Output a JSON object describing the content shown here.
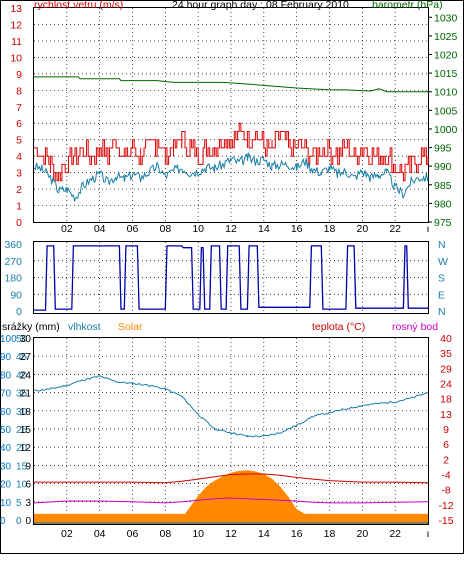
{
  "page": {
    "title": "24 hour graph day : 08 February 2010"
  },
  "colors": {
    "wind_gust": "#dd0000",
    "wind_avg": "#1a7fa8",
    "barometer": "#006600",
    "direction": "#0000aa",
    "humidity": "#1a7fa8",
    "solar": "#ff8800",
    "temperature": "#cc0000",
    "dewpoint": "#cc00cc",
    "rain": "#0077cc"
  },
  "chart_data": [
    {
      "type": "line",
      "id": "wind-pressure",
      "title": "24 hour graph day : 08 February 2010",
      "left_axis_label": "rychlost vetru (m/s)",
      "right_axis_label": "barometr (hPa)",
      "x_ticks": [
        "02",
        "04",
        "06",
        "08",
        "10",
        "12",
        "14",
        "16",
        "18",
        "20",
        "22"
      ],
      "x_range_hours": [
        0,
        24
      ],
      "left_ticks": [
        0,
        1,
        2,
        3,
        4,
        5,
        6,
        7,
        8,
        9,
        10,
        11,
        12,
        13
      ],
      "left_range": [
        0,
        13
      ],
      "right_ticks": [
        975,
        980,
        985,
        990,
        995,
        1000,
        1005,
        1010,
        1015,
        1020,
        1025,
        1030
      ],
      "right_range": [
        975,
        1032.5
      ],
      "grid": true,
      "series": [
        {
          "name": "rychlost vetru gust",
          "axis": "left",
          "color": "#dd0000",
          "style": "bars",
          "x": [
            0,
            0.5,
            1,
            1.5,
            2,
            2.5,
            3,
            3.5,
            4,
            4.5,
            5,
            5.5,
            6,
            6.5,
            7,
            7.5,
            8,
            8.5,
            9,
            9.5,
            10,
            10.5,
            11,
            11.5,
            12,
            12.5,
            13,
            13.5,
            14,
            14.5,
            15,
            15.5,
            16,
            16.5,
            17,
            17.5,
            18,
            18.5,
            19,
            19.5,
            20,
            20.5,
            21,
            21.5,
            22,
            22.5,
            23,
            23.5
          ],
          "values": [
            4.5,
            4.0,
            3.5,
            3.0,
            3.5,
            4.0,
            4.5,
            4.0,
            4.5,
            4.0,
            5.0,
            4.0,
            4.5,
            4.0,
            4.5,
            5.0,
            4.0,
            4.5,
            5.0,
            4.5,
            4.0,
            4.5,
            4.5,
            5.0,
            5.0,
            5.5,
            5.0,
            5.5,
            4.5,
            4.5,
            5.0,
            4.5,
            4.5,
            4.5,
            4.0,
            4.5,
            4.5,
            4.0,
            4.5,
            4.0,
            4.5,
            4.0,
            4.0,
            4.0,
            3.5,
            3.0,
            3.5,
            4.0
          ]
        },
        {
          "name": "rychlost vetru avg",
          "axis": "left",
          "color": "#1a7fa8",
          "x": [
            0,
            0.5,
            1,
            1.5,
            2,
            2.5,
            3,
            3.5,
            4,
            4.5,
            5,
            5.5,
            6,
            6.5,
            7,
            7.5,
            8,
            8.5,
            9,
            9.5,
            10,
            10.5,
            11,
            11.5,
            12,
            12.5,
            13,
            13.5,
            14,
            14.5,
            15,
            15.5,
            16,
            16.5,
            17,
            17.5,
            18,
            18.5,
            19,
            19.5,
            20,
            20.5,
            21,
            21.5,
            22,
            22.5,
            23,
            23.5
          ],
          "values": [
            3.4,
            3.2,
            2.7,
            1.9,
            2.0,
            1.5,
            2.2,
            2.6,
            2.9,
            2.4,
            2.8,
            2.6,
            2.9,
            2.7,
            3.0,
            3.4,
            2.8,
            3.1,
            3.3,
            3.0,
            3.1,
            3.3,
            3.3,
            3.5,
            3.8,
            3.6,
            3.9,
            3.7,
            3.8,
            3.4,
            3.5,
            3.5,
            3.3,
            3.7,
            3.2,
            3.0,
            3.3,
            2.9,
            3.1,
            2.7,
            3.1,
            2.7,
            2.9,
            3.0,
            2.1,
            1.7,
            2.5,
            2.7
          ]
        },
        {
          "name": "barometr",
          "axis": "right",
          "color": "#006600",
          "x": [
            0,
            2.7,
            2.8,
            5.2,
            5.3,
            7.5,
            8.5,
            11.5,
            13.2,
            16.0,
            18.0,
            19.0,
            20.5,
            21.0,
            21.5,
            24.0
          ],
          "values": [
            1014,
            1014,
            1013.5,
            1013.5,
            1013,
            1013,
            1012.5,
            1012.5,
            1012,
            1011,
            1010.5,
            1010.5,
            1010.2,
            1010.8,
            1010,
            1010
          ]
        }
      ]
    },
    {
      "type": "line",
      "id": "wind-direction",
      "y_ticks": [
        "0",
        "90",
        "180",
        "270",
        "360"
      ],
      "right_labels": [
        "N",
        "W",
        "S",
        "E",
        "N"
      ],
      "y_range": [
        0,
        360
      ],
      "x_range_hours": [
        0,
        24
      ],
      "series": [
        {
          "name": "smer vetru",
          "color": "#0000aa",
          "x": [
            0,
            0.7,
            0.8,
            1.2,
            1.3,
            2.3,
            2.4,
            3.3,
            3.4,
            4.3,
            4.4,
            5.2,
            5.3,
            5.5,
            5.6,
            6.3,
            6.4,
            8.0,
            8.1,
            8.5,
            8.6,
            9.0,
            9.1,
            9.6,
            9.7,
            10.1,
            10.2,
            10.3,
            10.4,
            10.7,
            10.8,
            11.3,
            11.4,
            11.7,
            11.8,
            12.5,
            12.6,
            13.0,
            13.1,
            13.6,
            13.7,
            16.8,
            16.9,
            17.5,
            17.6,
            19.0,
            19.1,
            19.5,
            19.6,
            22.5,
            22.6,
            22.7,
            22.8,
            24.0
          ],
          "values": [
            5,
            5,
            350,
            350,
            10,
            10,
            350,
            350,
            350,
            350,
            350,
            350,
            10,
            10,
            350,
            350,
            10,
            10,
            350,
            350,
            350,
            350,
            340,
            340,
            10,
            10,
            340,
            340,
            10,
            10,
            350,
            350,
            10,
            10,
            350,
            350,
            10,
            10,
            350,
            350,
            20,
            20,
            350,
            350,
            10,
            10,
            350,
            350,
            15,
            15,
            350,
            350,
            15,
            15
          ]
        }
      ]
    },
    {
      "type": "area",
      "id": "humidity-temperature",
      "x_ticks": [
        "02",
        "04",
        "06",
        "08",
        "10",
        "12",
        "14",
        "16",
        "18",
        "20",
        "22"
      ],
      "x_range_hours": [
        0,
        24
      ],
      "left_axis_labels": [
        "srážky (mm)",
        "vlhkost",
        "Solar"
      ],
      "right_axis_labels": [
        "teplota (°C)",
        "rosný bod"
      ],
      "rain_ticks": [
        "0",
        "10",
        "20",
        "30",
        "40",
        "50",
        "60",
        "70",
        "80",
        "90",
        "100"
      ],
      "humidity_ticks": [
        "0",
        "5",
        "10",
        "15",
        "20",
        "25",
        "30",
        "35",
        "40",
        "45",
        "50"
      ],
      "solar_ticks": [
        "0",
        "3",
        "6",
        "9",
        "12",
        "15",
        "18",
        "21",
        "24",
        "27",
        "30"
      ],
      "temp_ticks": [
        "-15",
        "-12",
        "-8",
        "-4",
        "2",
        "6",
        "9",
        "13",
        "18",
        "24",
        "29",
        "35",
        "40"
      ],
      "temp_range": [
        -15,
        40
      ],
      "humidity_range": [
        0,
        50
      ],
      "solar_range": [
        0,
        30
      ],
      "series": [
        {
          "name": "vlhkost",
          "axis": "humidity",
          "color": "#1a7fa8",
          "x": [
            0,
            1,
            2,
            3,
            4,
            5,
            6,
            7,
            8,
            9,
            10,
            11,
            12,
            13,
            14,
            15,
            16,
            17,
            18,
            19,
            20,
            21,
            22,
            23,
            24
          ],
          "values": [
            35.5,
            36,
            37,
            38.5,
            39.5,
            38,
            37.5,
            37,
            36,
            34,
            29,
            25,
            24,
            23,
            23,
            24,
            26,
            28.5,
            29.5,
            30.5,
            31.5,
            32,
            32.5,
            33.5,
            35
          ]
        },
        {
          "name": "Solar",
          "axis": "solar",
          "color": "#ff8800",
          "x": [
            0,
            9.2,
            9.6,
            10,
            10.5,
            11,
            11.5,
            12,
            12.5,
            13,
            13.5,
            14,
            14.5,
            15,
            15.5,
            16,
            16.5,
            24
          ],
          "values": [
            1,
            1,
            2.5,
            4,
            5.5,
            6.5,
            7.2,
            7.8,
            8.1,
            8.2,
            8.0,
            7.6,
            6.8,
            5.5,
            3.8,
            1.8,
            1,
            1
          ]
        },
        {
          "name": "teplota",
          "axis": "temp",
          "color": "#cc0000",
          "x": [
            0,
            2,
            4,
            6,
            8,
            9,
            10,
            11,
            12,
            13,
            14,
            15,
            16,
            17,
            18,
            20,
            22,
            24
          ],
          "values": [
            -6,
            -6,
            -6,
            -6,
            -6.2,
            -5.8,
            -5.2,
            -4.6,
            -4.0,
            -3.8,
            -3.8,
            -4.2,
            -4.8,
            -5.2,
            -5.6,
            -6,
            -6,
            -6.2
          ]
        },
        {
          "name": "rosný bod",
          "axis": "temp",
          "color": "#cc00cc",
          "x": [
            0,
            2,
            4,
            6,
            8,
            9,
            10,
            11,
            12,
            13,
            14,
            15,
            16,
            17,
            18,
            20,
            22,
            24
          ],
          "values": [
            -11.5,
            -11,
            -11,
            -11.2,
            -11.5,
            -11.2,
            -10.8,
            -10.4,
            -10.2,
            -10.4,
            -10.6,
            -10.8,
            -11,
            -11.3,
            -11.5,
            -11.5,
            -11.3,
            -11.2
          ]
        },
        {
          "name": "srážky",
          "axis": "rain",
          "color": "#0077cc",
          "x": [
            0,
            24
          ],
          "values": [
            0,
            0
          ]
        }
      ]
    }
  ]
}
